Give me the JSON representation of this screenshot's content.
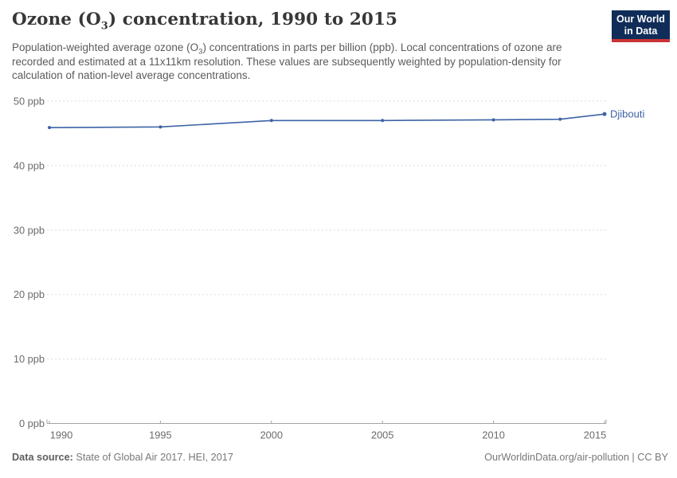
{
  "header": {
    "title_pre": "Ozone (O",
    "title_sub": "3",
    "title_post": ") concentration, 1990 to 2015",
    "logo": {
      "line1": "Our World",
      "line2": "in Data",
      "bg_color": "#102d59",
      "stripe_color": "#cb3335"
    }
  },
  "subtitle": {
    "pre": "Population-weighted average ozone (O",
    "sub": "3",
    "post": ") concentrations in parts per billion (ppb). Local concentrations of ozone are recorded and estimated at a 11x11km resolution. These values are subsequently weighted by population-density for calculation of nation-level average concentrations."
  },
  "chart_data": {
    "type": "line",
    "title": "Ozone (O3) concentration, 1990 to 2015",
    "xlabel": "",
    "ylabel": "ppb",
    "xlim": [
      1990,
      2015
    ],
    "ylim": [
      0,
      50
    ],
    "x_ticks": [
      1990,
      1995,
      2000,
      2005,
      2010,
      2015
    ],
    "y_ticks": [
      0,
      10,
      20,
      30,
      40,
      50
    ],
    "y_tick_suffix": " ppb",
    "grid": "horizontal-dashed",
    "legend_position": "end-of-line-label",
    "series": [
      {
        "name": "Djibouti",
        "color": "#3d63a5",
        "x": [
          1990,
          1995,
          2000,
          2005,
          2010,
          2013,
          2015
        ],
        "values": [
          45.9,
          46.0,
          47.0,
          47.0,
          47.1,
          47.2,
          48.0
        ]
      }
    ]
  },
  "footer": {
    "source_label": "Data source:",
    "source_text": " State of Global Air 2017. HEI, 2017",
    "credit": "OurWorldinData.org/air-pollution | CC BY"
  },
  "colors": {
    "line": "#3d63a5",
    "gridline": "#dedede",
    "axis": "#a3a3a3",
    "title_text": "#373737",
    "subtitle_text": "#5b5b5b",
    "logo_bg": "#102d59",
    "logo_stripe": "#cb3335"
  }
}
